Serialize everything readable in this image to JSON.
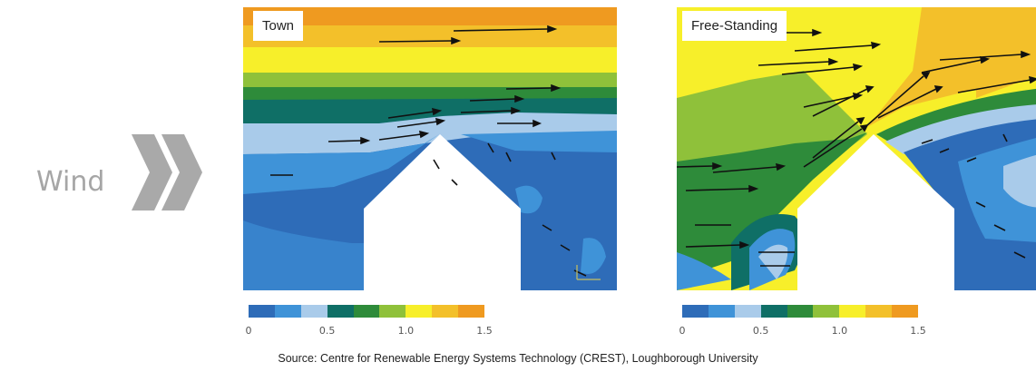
{
  "wind_label": "Wind",
  "panels": [
    {
      "title": "Town"
    },
    {
      "title": "Free-Standing"
    }
  ],
  "colorbar": {
    "colors": [
      "#2e6cb8",
      "#3f93d8",
      "#a9cbea",
      "#0f6f66",
      "#2e8b3a",
      "#8fc13a",
      "#f7ef2a",
      "#f3c02a",
      "#ef9a20"
    ],
    "ticks": [
      "0",
      "0.5",
      "1.0",
      "1.5"
    ],
    "tick_values": [
      0,
      0.5,
      1.0,
      1.5
    ],
    "range": [
      0,
      1.5
    ]
  },
  "source": "Source: Centre for Renewable Energy Systems Technology (CREST), Loughborough University"
}
